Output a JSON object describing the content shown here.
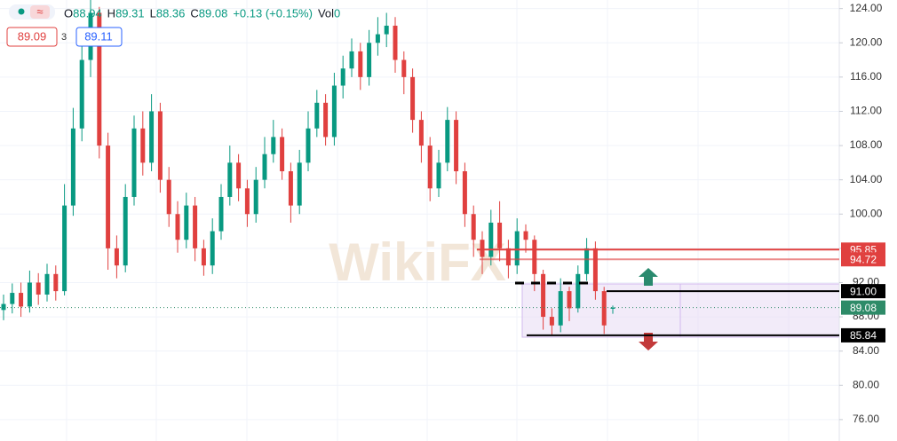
{
  "chart_data": {
    "type": "candlestick",
    "header": [
      {
        "key": "O",
        "value": "88.94"
      },
      {
        "key": "H",
        "value": "89.31"
      },
      {
        "key": "L",
        "value": "88.36"
      },
      {
        "key": "C",
        "value": "89.08"
      }
    ],
    "change": "+0.13 (+0.15%)",
    "volume_key": "Vol",
    "volume": "0",
    "sell_price": "89.09",
    "spread": "3",
    "buy_price": "89.11",
    "watermark": "WikiFX",
    "up_color": "#089981",
    "down_color": "#e0403f",
    "open": [
      88.8,
      89.5,
      90.8,
      89.2,
      92.0,
      90.6,
      93.0,
      91.0,
      101,
      110,
      118,
      123.5,
      108,
      96,
      94,
      102,
      110,
      106,
      112,
      104,
      100,
      97,
      101,
      96,
      94,
      98,
      102,
      106,
      103,
      100,
      104,
      107,
      109,
      105,
      101,
      106,
      110,
      113,
      109,
      115,
      117,
      119,
      116,
      120,
      121,
      122,
      118,
      116,
      111,
      108,
      103,
      106,
      111,
      105,
      100,
      97,
      95,
      99,
      96,
      94,
      98,
      97,
      93,
      88,
      87,
      91,
      89,
      93,
      96,
      91,
      88.94
    ],
    "high": [
      90.6,
      91.9,
      92.0,
      93.4,
      93.1,
      94.2,
      94.0,
      103.5,
      112.4,
      120.6,
      125,
      124.2,
      109.5,
      97.5,
      103.5,
      111.5,
      112,
      114,
      113,
      105.5,
      101.5,
      102.5,
      102,
      97,
      99.5,
      103.5,
      108,
      107,
      104,
      105.5,
      109,
      111,
      110,
      106,
      107.5,
      112,
      114.5,
      114,
      116.5,
      118.5,
      120.5,
      120,
      121.5,
      123,
      123.5,
      123,
      119,
      117,
      112,
      109,
      107.5,
      112.5,
      112,
      106,
      101,
      98,
      100.5,
      101.5,
      97,
      99.5,
      98.8,
      97.5,
      93.5,
      89,
      92.5,
      91.5,
      94,
      97.2,
      96.8,
      91.5,
      89.31
    ],
    "low": [
      87.6,
      88.4,
      88.0,
      88.5,
      89.4,
      89.8,
      89.9,
      90.5,
      99.8,
      108.5,
      116,
      106.5,
      93.5,
      92.5,
      93.2,
      101,
      104.5,
      105,
      102.5,
      98.5,
      95.5,
      96,
      94.5,
      92.8,
      93,
      97,
      101,
      101.5,
      98.5,
      99,
      103,
      106,
      104,
      99,
      100,
      105,
      109,
      108,
      108,
      113.5,
      116,
      114.5,
      115,
      118.5,
      119.5,
      116.5,
      114,
      109.5,
      106,
      101.5,
      102,
      105,
      103.5,
      98.5,
      95,
      93,
      94,
      94.5,
      92.5,
      93,
      95.5,
      91,
      86.5,
      85.8,
      86.2,
      87.5,
      88.5,
      92.2,
      90,
      86,
      88.36
    ],
    "close": [
      89.5,
      90.8,
      89.2,
      92.0,
      90.6,
      93.0,
      91.0,
      101,
      110,
      118,
      123.5,
      108,
      96,
      94,
      102,
      110,
      106,
      112,
      104,
      100,
      97,
      101,
      96,
      94,
      98,
      102,
      106,
      103,
      100,
      104,
      107,
      109,
      105,
      101,
      106,
      110,
      113,
      109,
      115,
      117,
      119,
      116,
      120,
      121,
      122,
      118,
      116,
      111,
      108,
      103,
      106,
      111,
      105,
      100,
      97,
      95,
      99,
      96,
      94,
      98,
      97,
      93,
      88,
      87,
      91,
      89,
      93,
      96,
      91,
      87,
      89.08
    ],
    "ylim": [
      73.5,
      125
    ],
    "yticks": [
      {
        "value": 76,
        "label": "76.00"
      },
      {
        "value": 80,
        "label": "80.00"
      },
      {
        "value": 84,
        "label": "84.00"
      },
      {
        "value": 88,
        "label": "88.00"
      },
      {
        "value": 92,
        "label": "92.00"
      },
      {
        "value": 96,
        "label": "96.00"
      },
      {
        "value": 100,
        "label": "100.00"
      },
      {
        "value": 104,
        "label": "104.00"
      },
      {
        "value": 108,
        "label": "108.00"
      },
      {
        "value": 112,
        "label": "112.00"
      },
      {
        "value": 116,
        "label": "116.00"
      },
      {
        "value": 120,
        "label": "120.00"
      },
      {
        "value": 124,
        "label": "124.00"
      }
    ],
    "grid": true,
    "levels": [
      {
        "price": 95.85,
        "color": "#e0403f",
        "start": 537
      },
      {
        "price": 94.72,
        "color": "#e0403f",
        "start": 540
      },
      {
        "price": {
          "value": 91,
          "label": "91.00"
        },
        "color": "#000000",
        "start": 683
      },
      {
        "price": 89.08,
        "color": "#2e8b68",
        "start": 0
      },
      {
        "price": 85.84,
        "color": "#000000",
        "start": 593
      }
    ]
  }
}
